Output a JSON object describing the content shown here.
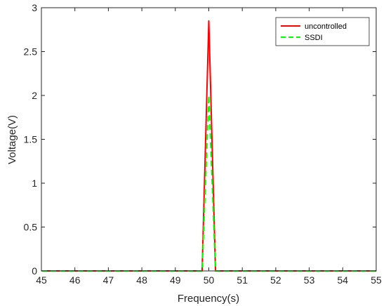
{
  "chart_data": {
    "type": "line",
    "xlabel": "Frequency(s)",
    "ylabel": "Voltage(V)",
    "xlim": [
      45,
      55
    ],
    "ylim": [
      0,
      3
    ],
    "xticks": [
      45,
      46,
      47,
      48,
      49,
      50,
      51,
      52,
      53,
      54,
      55
    ],
    "yticks": [
      0,
      0.5,
      1,
      1.5,
      2,
      2.5,
      3
    ],
    "ytick_labels": [
      "0",
      "0.5",
      "1",
      "1.5",
      "2",
      "2.5",
      "3"
    ],
    "grid": false,
    "legend_position": "top-right",
    "series": [
      {
        "name": "uncontrolled",
        "color": "#ff0000",
        "style": "solid",
        "x": [
          45,
          49.8,
          50,
          50.2,
          55
        ],
        "y": [
          0,
          0,
          2.85,
          0,
          0
        ]
      },
      {
        "name": "SSDI",
        "color": "#00ff00",
        "style": "dashed",
        "x": [
          45,
          49.8,
          50,
          50.2,
          55
        ],
        "y": [
          0,
          0,
          2.0,
          0,
          0
        ]
      }
    ]
  }
}
